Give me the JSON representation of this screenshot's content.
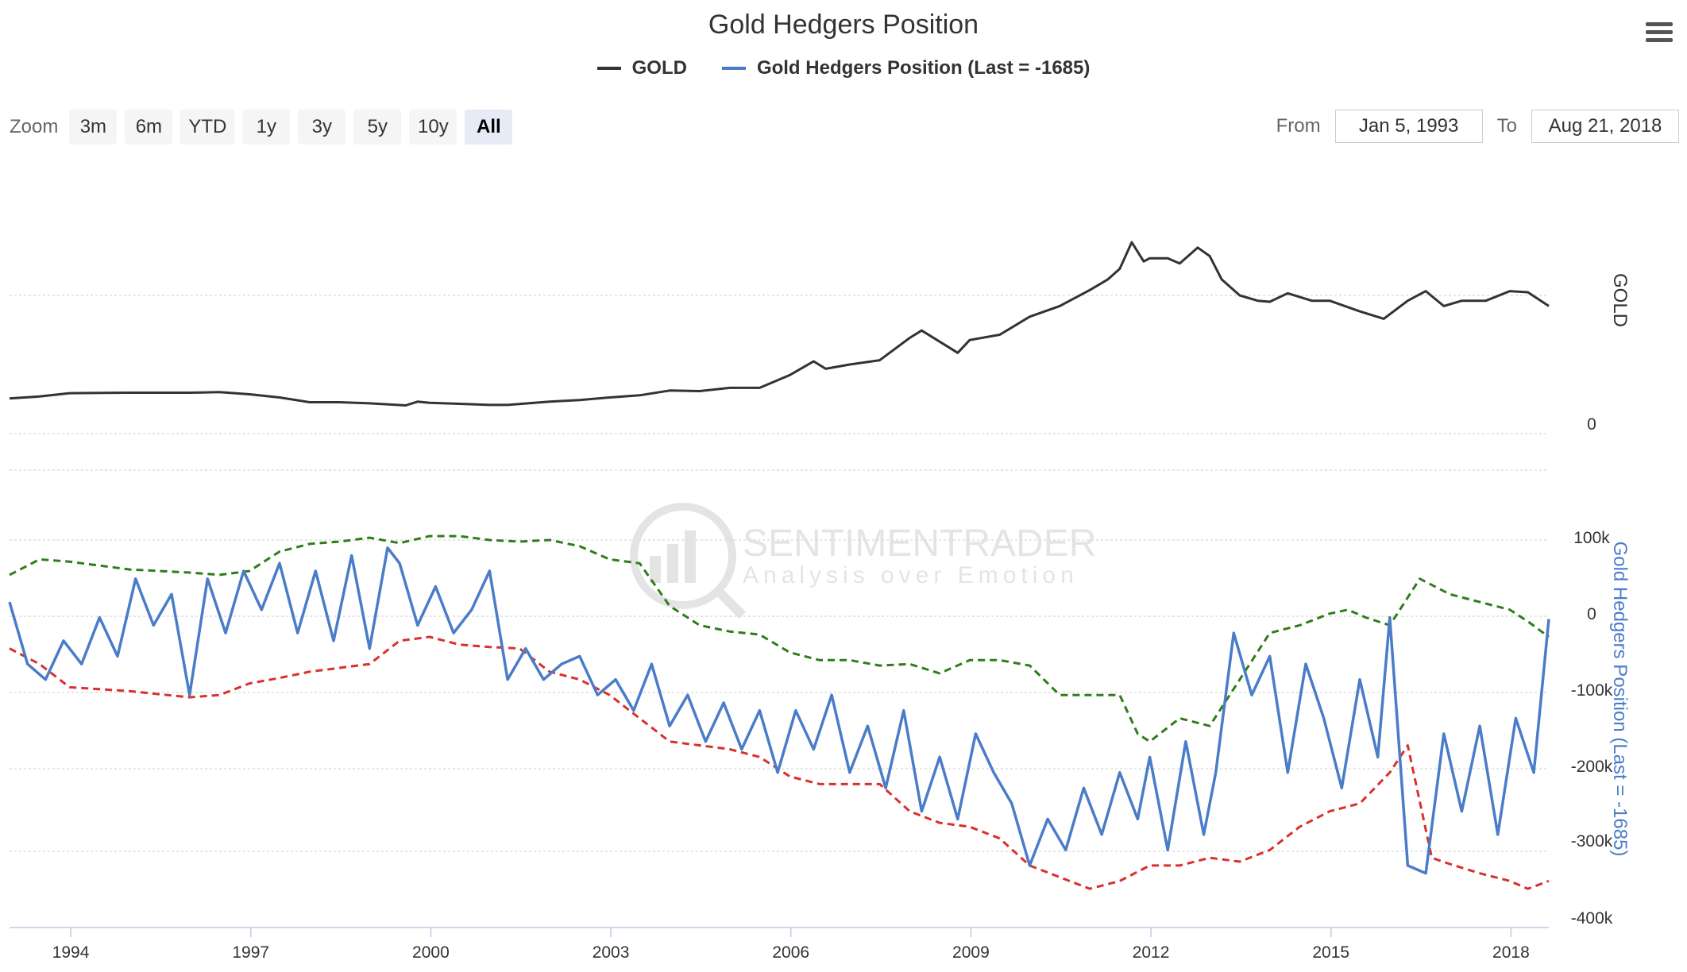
{
  "title": "Gold Hedgers Position",
  "legend": [
    {
      "label": "GOLD",
      "color": "#333333"
    },
    {
      "label": "Gold Hedgers Position (Last = -1685)",
      "color": "#4a7cc8"
    }
  ],
  "zoom": {
    "label": "Zoom",
    "buttons": [
      "3m",
      "6m",
      "YTD",
      "1y",
      "3y",
      "5y",
      "10y",
      "All"
    ],
    "active": "All"
  },
  "range": {
    "from_label": "From",
    "from_value": "Jan 5, 1993",
    "to_label": "To",
    "to_value": "Aug 21, 2018"
  },
  "watermark": {
    "name": "SENTIMENTRADER",
    "tagline": "Analysis over Emotion"
  },
  "colors": {
    "upper_band": "#2e7d1a",
    "lower_band": "#d9302b",
    "hedgers": "#4a7cc8",
    "gold": "#333333"
  },
  "chart_data": [
    {
      "type": "line",
      "pane": "top",
      "ylabel": "GOLD",
      "yticks": [
        "0"
      ],
      "ylim": [
        0,
        2000
      ],
      "x_range": [
        1993.0,
        2018.65
      ],
      "series": [
        {
          "name": "GOLD",
          "x": [
            1993.0,
            1993.5,
            1994.0,
            1995.0,
            1996.0,
            1996.5,
            1997.0,
            1997.5,
            1998.0,
            1998.5,
            1999.0,
            1999.6,
            1999.8,
            2000.0,
            2000.5,
            2001.0,
            2001.3,
            2002.0,
            2002.5,
            2003.0,
            2003.5,
            2004.0,
            2004.5,
            2005.0,
            2005.5,
            2006.0,
            2006.4,
            2006.6,
            2007.0,
            2007.5,
            2008.0,
            2008.2,
            2008.8,
            2009.0,
            2009.5,
            2010.0,
            2010.5,
            2011.0,
            2011.3,
            2011.5,
            2011.7,
            2011.9,
            2012.0,
            2012.3,
            2012.5,
            2012.8,
            2013.0,
            2013.2,
            2013.5,
            2013.8,
            2014.0,
            2014.3,
            2014.7,
            2015.0,
            2015.5,
            2015.9,
            2016.3,
            2016.6,
            2016.9,
            2017.2,
            2017.6,
            2018.0,
            2018.3,
            2018.65
          ],
          "values": [
            330,
            350,
            380,
            385,
            385,
            390,
            370,
            340,
            295,
            295,
            285,
            265,
            300,
            290,
            280,
            270,
            270,
            300,
            315,
            340,
            360,
            405,
            400,
            430,
            430,
            550,
            680,
            610,
            650,
            690,
            900,
            970,
            760,
            880,
            930,
            1100,
            1200,
            1350,
            1450,
            1550,
            1800,
            1620,
            1650,
            1650,
            1600,
            1750,
            1670,
            1450,
            1300,
            1250,
            1240,
            1320,
            1250,
            1250,
            1150,
            1080,
            1250,
            1340,
            1200,
            1250,
            1250,
            1340,
            1330,
            1200
          ]
        }
      ]
    },
    {
      "type": "line",
      "pane": "bottom",
      "ylabel": "Gold Hedgers Position (Last = -1685)",
      "yticks": [
        "100k",
        "0",
        "-100k",
        "-200k",
        "-300k",
        "-400k"
      ],
      "ylim": [
        -400000,
        100000
      ],
      "x_range": [
        1993.0,
        2018.65
      ],
      "xticks": [
        "1994",
        "1997",
        "2000",
        "2003",
        "2006",
        "2009",
        "2012",
        "2015",
        "2018"
      ],
      "series": [
        {
          "name": "Upper Band",
          "style": "dashed",
          "x": [
            1993.0,
            1993.5,
            1994.0,
            1995.0,
            1996.0,
            1996.5,
            1997.0,
            1997.5,
            1998.0,
            1998.5,
            1999.0,
            1999.5,
            2000.0,
            2000.5,
            2001.0,
            2001.5,
            2002.0,
            2002.5,
            2003.0,
            2003.5,
            2004.0,
            2004.5,
            2005.0,
            2005.5,
            2006.0,
            2006.5,
            2007.0,
            2007.5,
            2008.0,
            2008.5,
            2009.0,
            2009.5,
            2010.0,
            2010.5,
            2011.0,
            2011.5,
            2011.8,
            2012.0,
            2012.5,
            2013.0,
            2013.5,
            2014.0,
            2014.5,
            2015.0,
            2015.3,
            2015.6,
            2016.0,
            2016.5,
            2017.0,
            2017.5,
            2018.0,
            2018.3,
            2018.65
          ],
          "values": [
            55000,
            75000,
            72000,
            62000,
            58000,
            55000,
            60000,
            85000,
            95000,
            98000,
            103000,
            96000,
            105000,
            105000,
            100000,
            98000,
            100000,
            92000,
            75000,
            70000,
            15000,
            -10000,
            -18000,
            -22000,
            -45000,
            -55000,
            -55000,
            -62000,
            -60000,
            -72000,
            -55000,
            -55000,
            -62000,
            -100000,
            -100000,
            -100000,
            -150000,
            -160000,
            -130000,
            -140000,
            -80000,
            -20000,
            -10000,
            5000,
            10000,
            0,
            -10000,
            50000,
            30000,
            20000,
            10000,
            -5000,
            -25000
          ]
        },
        {
          "name": "Lower Band",
          "style": "dashed",
          "x": [
            1993.0,
            1993.5,
            1994.0,
            1995.0,
            1996.0,
            1996.5,
            1997.0,
            1997.5,
            1998.0,
            1998.5,
            1999.0,
            1999.5,
            2000.0,
            2000.5,
            2001.0,
            2001.5,
            2002.0,
            2002.5,
            2003.0,
            2003.5,
            2004.0,
            2004.5,
            2005.0,
            2005.5,
            2006.0,
            2006.5,
            2007.0,
            2007.5,
            2008.0,
            2008.5,
            2009.0,
            2009.5,
            2010.0,
            2010.5,
            2011.0,
            2011.5,
            2012.0,
            2012.5,
            2013.0,
            2013.5,
            2014.0,
            2014.5,
            2015.0,
            2015.5,
            2016.0,
            2016.3,
            2016.7,
            2017.0,
            2017.5,
            2018.0,
            2018.3,
            2018.65
          ],
          "values": [
            -40000,
            -60000,
            -90000,
            -95000,
            -103000,
            -100000,
            -85000,
            -78000,
            -70000,
            -65000,
            -60000,
            -30000,
            -25000,
            -35000,
            -38000,
            -40000,
            -70000,
            -80000,
            -100000,
            -130000,
            -160000,
            -165000,
            -170000,
            -180000,
            -205000,
            -215000,
            -215000,
            -215000,
            -250000,
            -265000,
            -270000,
            -285000,
            -320000,
            -335000,
            -350000,
            -340000,
            -320000,
            -320000,
            -310000,
            -315000,
            -300000,
            -270000,
            -250000,
            -240000,
            -200000,
            -165000,
            -310000,
            -318000,
            -330000,
            -340000,
            -350000,
            -340000
          ]
        },
        {
          "name": "Gold Hedgers Position",
          "style": "solid",
          "x": [
            1993.0,
            1993.3,
            1993.6,
            1993.9,
            1994.2,
            1994.5,
            1994.8,
            1995.1,
            1995.4,
            1995.7,
            1996.0,
            1996.3,
            1996.6,
            1996.9,
            1997.2,
            1997.5,
            1997.8,
            1998.1,
            1998.4,
            1998.7,
            1999.0,
            1999.3,
            1999.5,
            1999.8,
            2000.1,
            2000.4,
            2000.7,
            2001.0,
            2001.3,
            2001.6,
            2001.9,
            2002.2,
            2002.5,
            2002.8,
            2003.1,
            2003.4,
            2003.7,
            2004.0,
            2004.3,
            2004.6,
            2004.9,
            2005.2,
            2005.5,
            2005.8,
            2006.1,
            2006.4,
            2006.7,
            2007.0,
            2007.3,
            2007.6,
            2007.9,
            2008.2,
            2008.5,
            2008.8,
            2009.1,
            2009.4,
            2009.7,
            2010.0,
            2010.3,
            2010.6,
            2010.9,
            2011.2,
            2011.5,
            2011.8,
            2012.0,
            2012.3,
            2012.6,
            2012.9,
            2013.1,
            2013.4,
            2013.7,
            2014.0,
            2014.3,
            2014.6,
            2014.9,
            2015.2,
            2015.5,
            2015.8,
            2016.0,
            2016.3,
            2016.6,
            2016.9,
            2017.2,
            2017.5,
            2017.8,
            2018.1,
            2018.4,
            2018.65
          ],
          "values": [
            20000,
            -60000,
            -80000,
            -30000,
            -60000,
            0,
            -50000,
            50000,
            -10000,
            30000,
            -100000,
            50000,
            -20000,
            60000,
            10000,
            70000,
            -20000,
            60000,
            -30000,
            80000,
            -40000,
            90000,
            70000,
            -10000,
            40000,
            -20000,
            10000,
            60000,
            -80000,
            -40000,
            -80000,
            -60000,
            -50000,
            -100000,
            -80000,
            -120000,
            -60000,
            -140000,
            -100000,
            -160000,
            -110000,
            -170000,
            -120000,
            -200000,
            -120000,
            -170000,
            -100000,
            -200000,
            -140000,
            -220000,
            -120000,
            -250000,
            -180000,
            -260000,
            -150000,
            -200000,
            -240000,
            -320000,
            -260000,
            -300000,
            -220000,
            -280000,
            -200000,
            -260000,
            -180000,
            -300000,
            -160000,
            -280000,
            -200000,
            -20000,
            -100000,
            -50000,
            -200000,
            -60000,
            -130000,
            -220000,
            -80000,
            -180000,
            0,
            -320000,
            -330000,
            -150000,
            -250000,
            -140000,
            -280000,
            -130000,
            -200000,
            -2000
          ]
        }
      ]
    }
  ]
}
